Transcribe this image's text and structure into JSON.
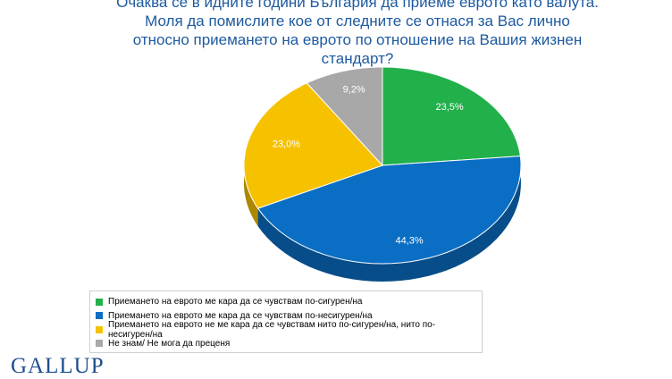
{
  "chart_data": {
    "type": "pie",
    "title": "Очаква се в идните години България да приеме еврото като валута. Моля да помислите кое от следните се отнася за Вас лично относно приемането на еврото по отношение на Вашия жизнен стандарт?",
    "categories": [
      "Приемането на еврото ме кара да се чувствам по-сигурен/на",
      "Приемането на еврото ме кара да се чувствам по-несигурен/на",
      "Приемането на еврото не ме кара да се чувствам нито по-сигурен/на, нито по-несигурен/на",
      "Не знам/ Не мога да преценя"
    ],
    "values": [
      23.5,
      44.3,
      23.0,
      9.2
    ],
    "value_labels": [
      "23,5%",
      "44,3%",
      "23,0%",
      "9,2%"
    ],
    "colors": [
      "#22b04b",
      "#0a6ec4",
      "#f6c200",
      "#a8a8a8"
    ]
  },
  "logo": "GALLUP"
}
